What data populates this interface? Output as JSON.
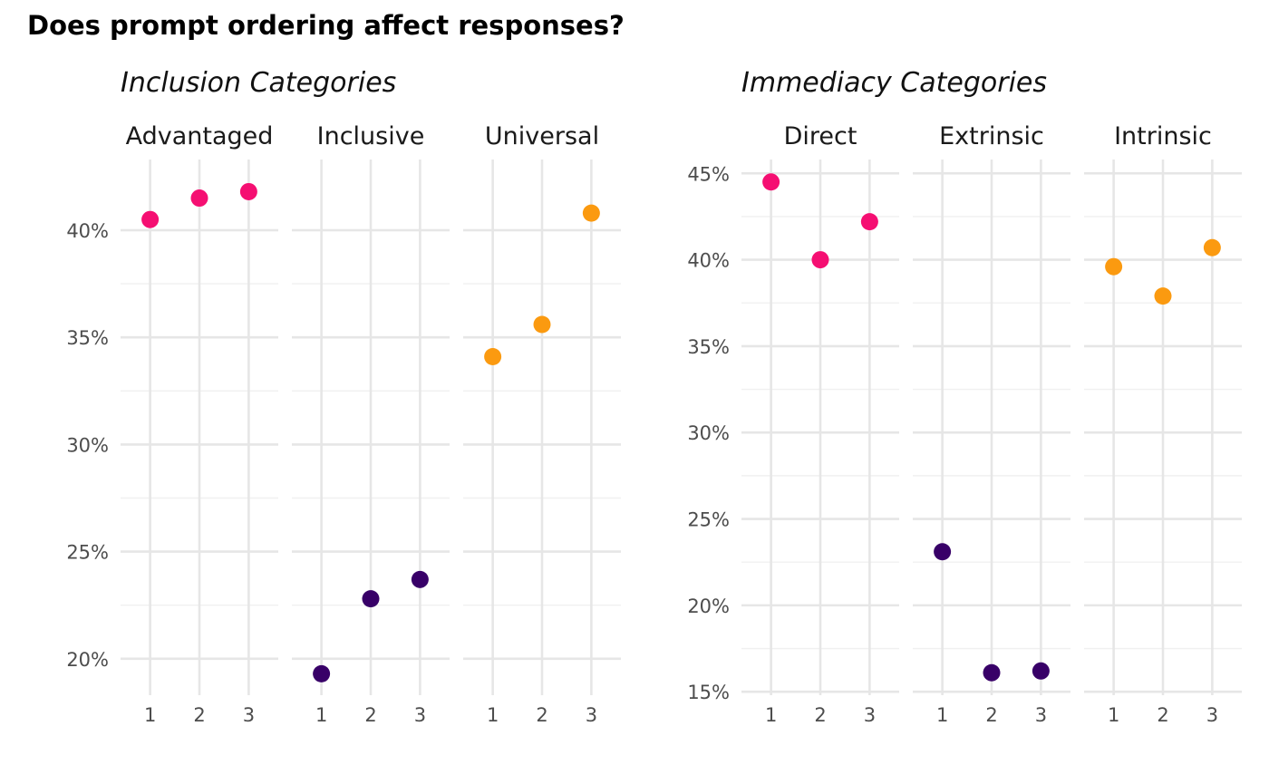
{
  "chart_data": {
    "type": "scatter",
    "title": "Does prompt ordering affect responses?",
    "panels": [
      {
        "subtitle": "Inclusion Categories",
        "yticks": [
          20,
          25,
          30,
          35,
          40
        ],
        "ylim": [
          18.3,
          43.3
        ],
        "facets": [
          {
            "label": "Advantaged",
            "color": "#f50f72",
            "x": [
              1,
              2,
              3
            ],
            "y": [
              40.5,
              41.5,
              41.8
            ]
          },
          {
            "label": "Inclusive",
            "color": "#380068",
            "x": [
              1,
              2,
              3
            ],
            "y": [
              19.3,
              22.8,
              23.7
            ]
          },
          {
            "label": "Universal",
            "color": "#fb9a10",
            "x": [
              1,
              2,
              3
            ],
            "y": [
              34.1,
              35.6,
              40.8
            ]
          }
        ]
      },
      {
        "subtitle": "Immediacy Categories",
        "yticks": [
          15,
          20,
          25,
          30,
          35,
          40,
          45
        ],
        "ylim": [
          14.8,
          45.8
        ],
        "facets": [
          {
            "label": "Direct",
            "color": "#f50f72",
            "x": [
              1,
              2,
              3
            ],
            "y": [
              44.5,
              40.0,
              42.2
            ]
          },
          {
            "label": "Extrinsic",
            "color": "#380068",
            "x": [
              1,
              2,
              3
            ],
            "y": [
              23.1,
              16.1,
              16.2
            ]
          },
          {
            "label": "Intrinsic",
            "color": "#fb9a10",
            "x": [
              1,
              2,
              3
            ],
            "y": [
              39.6,
              37.9,
              40.7
            ]
          }
        ]
      }
    ],
    "xticks": [
      1,
      2,
      3
    ],
    "ytick_suffix": "%",
    "grid": true,
    "legend": "none"
  }
}
